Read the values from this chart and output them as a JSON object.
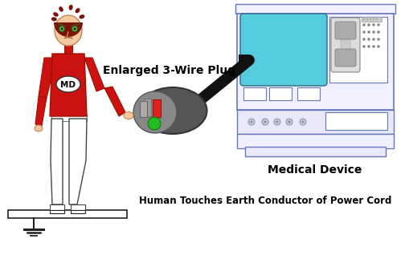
{
  "bg_color": "#ffffff",
  "skin_color": "#f5c8a0",
  "hair_color": "#7a1208",
  "shirt_color": "#cc1111",
  "shirt_dark": "#991100",
  "pants_color": "#ffffff",
  "pants_outline": "#444444",
  "ground_color": "#222222",
  "plug_dark": "#555555",
  "plug_mid": "#888888",
  "cable_color": "#111111",
  "device_outline": "#6677bb",
  "device_fill": "#f0f0ff",
  "device_inner": "#e8e8f8",
  "screen_fill": "#55ccdd",
  "pin_silver": "#aaaaaa",
  "pin_red": "#dd2222",
  "pin_green": "#22bb22",
  "label_plug": "Enlarged 3-Wire Plug",
  "label_device": "Medical Device",
  "label_caption": "Human Touches Earth Conductor of Power Cord"
}
